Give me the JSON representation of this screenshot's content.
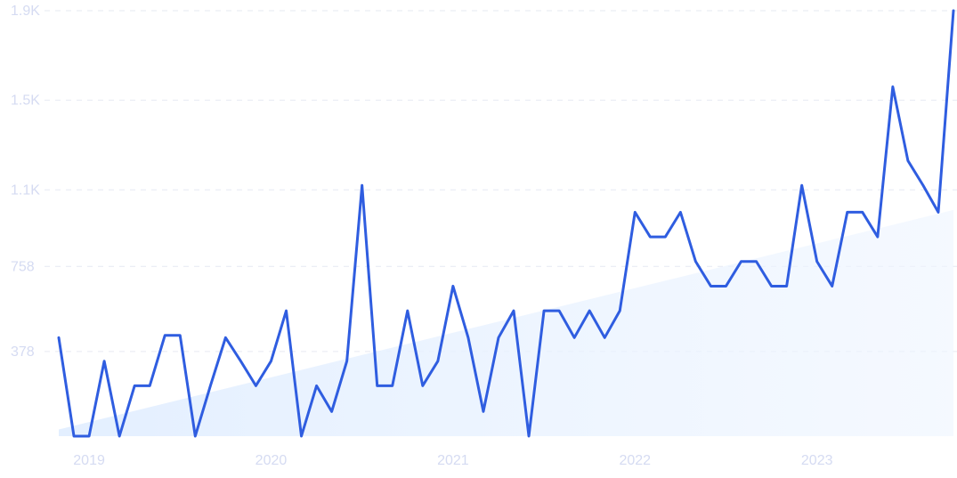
{
  "chart_data": {
    "type": "line",
    "title": "",
    "xlabel": "",
    "ylabel": "",
    "grid": "horizontal-dashed",
    "legend": "none",
    "x_start": "2018-11",
    "x_ticks": [
      "2019",
      "2020",
      "2021",
      "2022",
      "2023"
    ],
    "y_ticks": [
      {
        "value": 378,
        "label": "378"
      },
      {
        "value": 758,
        "label": "758"
      },
      {
        "value": 1100,
        "label": "1.1K"
      },
      {
        "value": 1500,
        "label": "1.5K"
      },
      {
        "value": 1900,
        "label": "1.9K"
      }
    ],
    "ylim": [
      0,
      1900
    ],
    "colors": {
      "line": "#2f5de0",
      "trend_fill": "#e3efff"
    },
    "series": [
      {
        "values": [
          440,
          0,
          0,
          335,
          0,
          225,
          225,
          450,
          450,
          0,
          225,
          440,
          335,
          225,
          335,
          560,
          0,
          225,
          110,
          335,
          1120,
          225,
          225,
          560,
          225,
          335,
          670,
          440,
          110,
          440,
          560,
          0,
          560,
          560,
          440,
          560,
          440,
          560,
          1000,
          890,
          890,
          1000,
          780,
          670,
          670,
          780,
          780,
          670,
          670,
          1120,
          780,
          670,
          1000,
          1000,
          890,
          1560,
          1230,
          1120,
          1000,
          1900
        ]
      }
    ],
    "trend": {
      "start": 30,
      "end": 1010
    }
  }
}
